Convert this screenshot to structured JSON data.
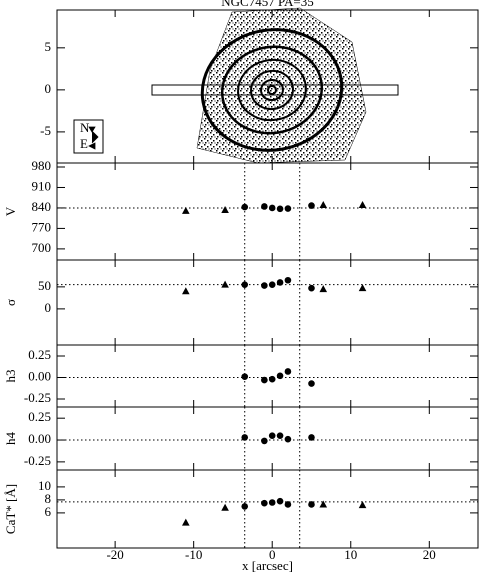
{
  "chart_data": [
    {
      "type": "image",
      "title": "NGC7457   PA=35",
      "xlim": [
        -27.4,
        26.2
      ],
      "ylim": [
        -8.7,
        9.5
      ],
      "yticks": [
        5,
        0,
        -5
      ],
      "compass": [
        "N",
        "E"
      ]
    },
    {
      "type": "scatter",
      "ylabel": "V",
      "xlim": [
        -27.4,
        26.2
      ],
      "ylim": [
        662,
        993.7
      ],
      "yticks": [
        980,
        910,
        840,
        770,
        700
      ],
      "hline": 840,
      "series": [
        {
          "marker": "triangle",
          "x": [
            -11,
            -6,
            6.5,
            11.5
          ],
          "values": [
            830,
            833,
            850,
            850
          ]
        },
        {
          "marker": "circle",
          "x": [
            -3.5,
            -1,
            0,
            1,
            2,
            5
          ],
          "values": [
            843,
            845,
            840,
            837,
            838,
            848
          ]
        }
      ]
    },
    {
      "type": "scatter",
      "ylabel": "σ",
      "xlim": [
        -27.4,
        26.2
      ],
      "ylim": [
        -82,
        111
      ],
      "yticks": [
        50,
        0
      ],
      "hline": 55,
      "series": [
        {
          "marker": "triangle",
          "x": [
            -11,
            -6,
            6.5,
            11.5
          ],
          "values": [
            40,
            55,
            45,
            47
          ]
        },
        {
          "marker": "circle",
          "x": [
            -3.5,
            -1,
            0,
            1,
            2,
            5
          ],
          "values": [
            55,
            53,
            55,
            60,
            65,
            47
          ]
        }
      ]
    },
    {
      "type": "scatter",
      "ylabel": "h3",
      "xlim": [
        -27.4,
        26.2
      ],
      "ylim": [
        -0.343,
        0.378
      ],
      "yticks": [
        0.25,
        {
          "value": 0,
          "label": "0.00"
        },
        -0.25
      ],
      "hline": 0,
      "series": [
        {
          "marker": "circle",
          "x": [
            -3.5,
            -1,
            0,
            1,
            2,
            5
          ],
          "values": [
            0.01,
            -0.03,
            -0.02,
            0.02,
            0.07,
            -0.07
          ]
        }
      ]
    },
    {
      "type": "scatter",
      "ylabel": "h4",
      "xlim": [
        -27.4,
        26.2
      ],
      "ylim": [
        -0.343,
        0.378
      ],
      "yticks": [
        0.25,
        {
          "value": 0,
          "label": "0.00"
        },
        -0.25
      ],
      "hline": 0,
      "series": [
        {
          "marker": "circle",
          "x": [
            -3.5,
            -1,
            0,
            1,
            2,
            5
          ],
          "values": [
            0.03,
            -0.01,
            0.05,
            0.05,
            0.01,
            0.03
          ]
        }
      ]
    },
    {
      "type": "scatter",
      "ylabel": "CaT* [Å]",
      "xlabel": "x [arcsec]",
      "xlim": [
        -27.4,
        26.2
      ],
      "ylim": [
        0.6,
        12.6
      ],
      "yticks": [
        10,
        8,
        6
      ],
      "hline": 7.7,
      "xticks": [
        -20,
        -10,
        0,
        10,
        20
      ],
      "vlines": [
        -3.5,
        3.5
      ],
      "series": [
        {
          "marker": "triangle",
          "x": [
            -11,
            -6,
            6.5,
            11.5
          ],
          "values": [
            4.5,
            6.8,
            7.3,
            7.2
          ]
        },
        {
          "marker": "circle",
          "x": [
            -3.5,
            -1,
            0,
            1,
            2,
            5
          ],
          "values": [
            7.0,
            7.5,
            7.6,
            7.8,
            7.3,
            7.3
          ]
        }
      ]
    }
  ]
}
